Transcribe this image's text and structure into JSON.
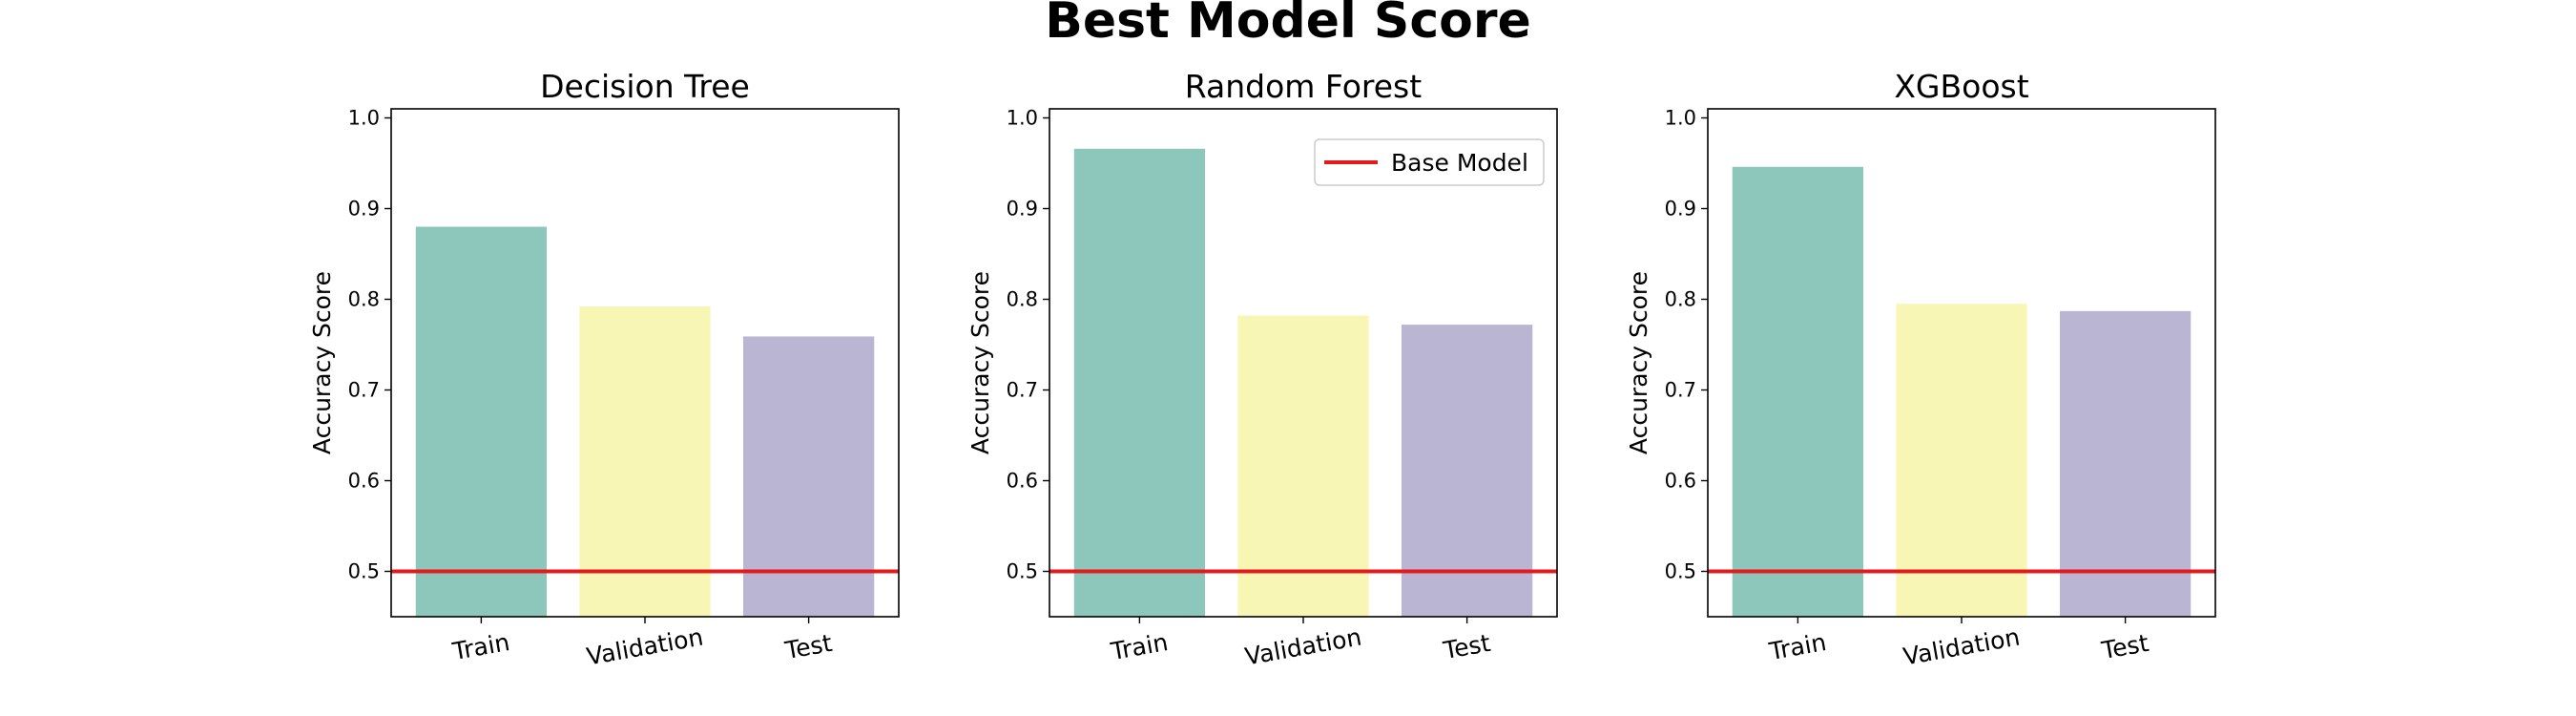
{
  "figure": {
    "title": "Best Model Score"
  },
  "chart_data": [
    {
      "type": "bar",
      "title": "Decision Tree",
      "xlabel": "",
      "ylabel": "Accuracy Score",
      "categories": [
        "Train",
        "Validation",
        "Test"
      ],
      "values": [
        0.88,
        0.792,
        0.759
      ],
      "ylim": [
        0.45,
        1.01
      ],
      "yticks": [
        "0.5",
        "0.6",
        "0.7",
        "0.8",
        "0.9",
        "1.0"
      ],
      "bar_colors": [
        "#8dc7bb",
        "#f8f6b4",
        "#bbb5d4"
      ],
      "base_line": {
        "value": 0.5,
        "color": "#e31a1c"
      },
      "legend": null,
      "grid": false
    },
    {
      "type": "bar",
      "title": "Random Forest",
      "xlabel": "",
      "ylabel": "Accuracy Score",
      "categories": [
        "Train",
        "Validation",
        "Test"
      ],
      "values": [
        0.966,
        0.782,
        0.772
      ],
      "ylim": [
        0.45,
        1.01
      ],
      "yticks": [
        "0.5",
        "0.6",
        "0.7",
        "0.8",
        "0.9",
        "1.0"
      ],
      "bar_colors": [
        "#8dc7bb",
        "#f8f6b4",
        "#bbb5d4"
      ],
      "base_line": {
        "value": 0.5,
        "color": "#e31a1c"
      },
      "legend": {
        "label": "Base Model",
        "placement": "upper right"
      },
      "grid": false
    },
    {
      "type": "bar",
      "title": "XGBoost",
      "xlabel": "",
      "ylabel": "Accuracy Score",
      "categories": [
        "Train",
        "Validation",
        "Test"
      ],
      "values": [
        0.946,
        0.795,
        0.787
      ],
      "ylim": [
        0.45,
        1.01
      ],
      "yticks": [
        "0.5",
        "0.6",
        "0.7",
        "0.8",
        "0.9",
        "1.0"
      ],
      "bar_colors": [
        "#8dc7bb",
        "#f8f6b4",
        "#bbb5d4"
      ],
      "base_line": {
        "value": 0.5,
        "color": "#e31a1c"
      },
      "legend": null,
      "grid": false
    }
  ]
}
